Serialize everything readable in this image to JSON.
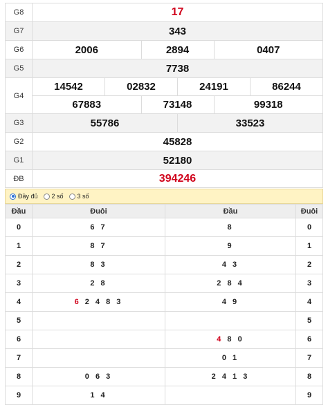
{
  "prizes": {
    "g8": {
      "label": "G8",
      "numbers": [
        "17"
      ]
    },
    "g7": {
      "label": "G7",
      "numbers": [
        "343"
      ]
    },
    "g6": {
      "label": "G6",
      "numbers": [
        "2006",
        "2894",
        "0407"
      ]
    },
    "g5": {
      "label": "G5",
      "numbers": [
        "7738"
      ]
    },
    "g4": {
      "label": "G4",
      "numbers": [
        "14542",
        "02832",
        "24191",
        "86244",
        "67883",
        "73148",
        "99318"
      ]
    },
    "g3": {
      "label": "G3",
      "numbers": [
        "55786",
        "33523"
      ]
    },
    "g2": {
      "label": "G2",
      "numbers": [
        "45828"
      ]
    },
    "g1": {
      "label": "G1",
      "numbers": [
        "52180"
      ]
    },
    "db": {
      "label": "ĐB",
      "numbers": [
        "394246"
      ]
    }
  },
  "options": {
    "full": "Đầy đủ",
    "two": "2 số",
    "three": "3 số",
    "selected": "full"
  },
  "loto_left": {
    "head_col": "Đầu",
    "tail_col": "Đuôi",
    "rows": [
      {
        "key": "0",
        "pre": "",
        "hl": "",
        "val": "6 7"
      },
      {
        "key": "1",
        "pre": "",
        "hl": "",
        "val": "8 7"
      },
      {
        "key": "2",
        "pre": "",
        "hl": "",
        "val": "8 3"
      },
      {
        "key": "3",
        "pre": "",
        "hl": "",
        "val": "2 8"
      },
      {
        "key": "4",
        "pre": "",
        "hl": "6",
        "val": " 2 4 8 3"
      },
      {
        "key": "5",
        "pre": "",
        "hl": "",
        "val": ""
      },
      {
        "key": "6",
        "pre": "",
        "hl": "",
        "val": ""
      },
      {
        "key": "7",
        "pre": "",
        "hl": "",
        "val": ""
      },
      {
        "key": "8",
        "pre": "",
        "hl": "",
        "val": "0 6 3"
      },
      {
        "key": "9",
        "pre": "",
        "hl": "",
        "val": "1 4"
      }
    ]
  },
  "loto_right": {
    "head_col": "Đầu",
    "tail_col": "Đuôi",
    "rows": [
      {
        "key": "0",
        "hl": "",
        "val": "8"
      },
      {
        "key": "1",
        "hl": "",
        "val": "9"
      },
      {
        "key": "2",
        "hl": "",
        "val": "4 3"
      },
      {
        "key": "3",
        "hl": "",
        "val": "2 8 4"
      },
      {
        "key": "4",
        "hl": "",
        "val": "4 9"
      },
      {
        "key": "5",
        "hl": "",
        "val": ""
      },
      {
        "key": "6",
        "hl": "4",
        "val": " 8 0"
      },
      {
        "key": "7",
        "hl": "",
        "val": "0 1"
      },
      {
        "key": "8",
        "hl": "",
        "val": "2 4 1 3"
      },
      {
        "key": "9",
        "hl": "",
        "val": ""
      }
    ]
  }
}
